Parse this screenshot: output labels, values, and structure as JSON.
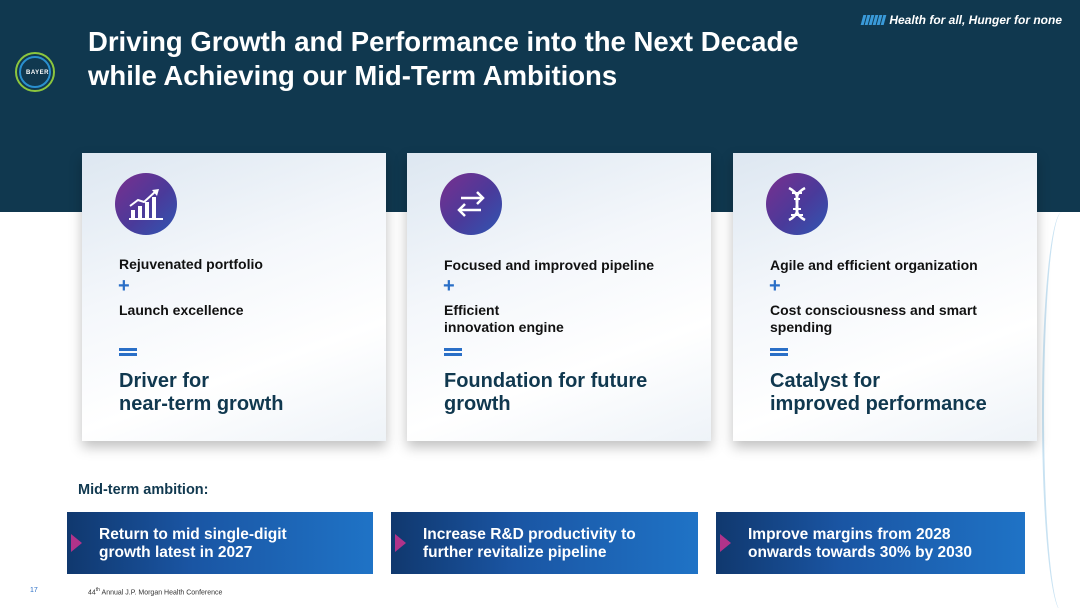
{
  "header": {
    "title_line1": "Driving Growth and Performance into the Next Decade",
    "title_line2": "while Achieving our Mid-Term Ambitions",
    "tagline": "Health for all, Hunger for none",
    "logo_text": "BAYER"
  },
  "cards": [
    {
      "icon": "growth-chart-icon",
      "line1": "Rejuvenated portfolio",
      "plus": "+",
      "line2": "Launch excellence",
      "result_line1": "Driver for",
      "result_line2": "near-term growth"
    },
    {
      "icon": "exchange-arrows-icon",
      "line1": "Focused and improved pipeline",
      "plus": "+",
      "line2a": "Efficient",
      "line2b": "innovation engine",
      "result_line1": "Foundation for future",
      "result_line2": "growth"
    },
    {
      "icon": "dna-icon",
      "line1": "Agile and efficient organization",
      "plus": "+",
      "line2a": "Cost consciousness and smart",
      "line2b": "spending",
      "result_line1": "Catalyst for",
      "result_line2": "improved performance"
    }
  ],
  "ambition": {
    "label": "Mid-term ambition:",
    "items": [
      {
        "line1": "Return to mid single-digit",
        "line2": "growth latest in 2027"
      },
      {
        "line1": "Increase R&D productivity to",
        "line2": "further revitalize pipeline"
      },
      {
        "line1": "Improve margins from 2028",
        "line2": "onwards towards 30% by 2030"
      }
    ]
  },
  "footer": {
    "page_number": "17",
    "conference_prefix": "44",
    "conference_sup": "th",
    "conference_rest": " Annual J.P. Morgan Health Conference"
  },
  "colors": {
    "header_bg": "#10384f",
    "accent_blue": "#2a6fc7",
    "accent_magenta": "#b0338a",
    "bayer_green": "#8cc63e"
  }
}
